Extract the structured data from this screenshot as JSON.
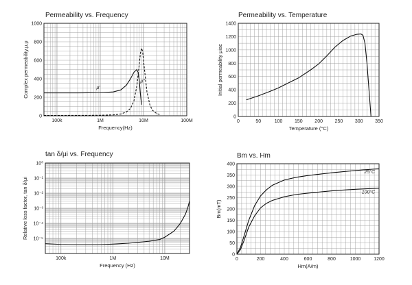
{
  "chart_data": [
    {
      "id": "pf",
      "type": "line",
      "title": "Permeability vs. Frequency",
      "xlabel": "Frequency(Hz)",
      "ylabel": "Complex permeability,μ,μ",
      "x_scale": "log",
      "xlim": [
        50000,
        100000000
      ],
      "ylim": [
        0,
        1000
      ],
      "x_ticks": [
        {
          "v": 100000,
          "label": "100k"
        },
        {
          "v": 1000000,
          "label": "1M"
        },
        {
          "v": 10000000,
          "label": "10M"
        },
        {
          "v": 100000000,
          "label": "100M"
        }
      ],
      "y_ticks": [
        0,
        200,
        400,
        600,
        800,
        1000
      ],
      "grid": "both",
      "series": [
        {
          "name": "μ'",
          "style": "solid",
          "x": [
            50000,
            100000,
            300000,
            1000000,
            2000000,
            3000000,
            4000000,
            5000000,
            6000000,
            7000000,
            7500000,
            8000000,
            8500000,
            9000000
          ],
          "y": [
            248,
            248,
            248,
            250,
            258,
            280,
            330,
            400,
            470,
            500,
            470,
            380,
            230,
            120
          ]
        },
        {
          "name": "μ''",
          "style": "dashed",
          "x": [
            50000,
            1000000,
            2000000,
            3000000,
            4000000,
            5000000,
            6000000,
            7000000,
            8000000,
            8500000,
            9000000,
            9500000,
            10000000,
            11000000,
            12000000,
            14000000,
            16000000,
            20000000,
            25000000
          ],
          "y": [
            3,
            5,
            10,
            20,
            40,
            80,
            160,
            320,
            560,
            680,
            730,
            700,
            600,
            420,
            260,
            120,
            60,
            25,
            10
          ]
        }
      ],
      "annotations": [
        {
          "text": "μ'",
          "x": 900000,
          "y": 290
        },
        {
          "text": "μ''",
          "x": 9500000,
          "y": 360
        }
      ]
    },
    {
      "id": "pt",
      "type": "line",
      "title": "Permeability vs. Temperature",
      "xlabel": "Temperature (°C)",
      "ylabel": "Initial permeability μiac",
      "x_scale": "linear",
      "xlim": [
        0,
        350
      ],
      "ylim": [
        0,
        1400
      ],
      "x_ticks": [
        {
          "v": 0,
          "label": "0"
        },
        {
          "v": 50,
          "label": "50"
        },
        {
          "v": 100,
          "label": "100"
        },
        {
          "v": 150,
          "label": "150"
        },
        {
          "v": 200,
          "label": "200"
        },
        {
          "v": 250,
          "label": "250"
        },
        {
          "v": 300,
          "label": "300"
        },
        {
          "v": 350,
          "label": "350"
        }
      ],
      "y_ticks": [
        0,
        200,
        400,
        600,
        800,
        1000,
        1200,
        1400
      ],
      "grid": "both",
      "series": [
        {
          "name": "",
          "style": "solid",
          "x": [
            20,
            50,
            80,
            100,
            120,
            150,
            180,
            200,
            220,
            240,
            260,
            280,
            295,
            305,
            310,
            315,
            320,
            325,
            330
          ],
          "y": [
            250,
            310,
            380,
            430,
            490,
            580,
            700,
            790,
            910,
            1040,
            1140,
            1210,
            1235,
            1240,
            1220,
            1100,
            800,
            400,
            0
          ]
        }
      ]
    },
    {
      "id": "tf",
      "type": "line",
      "title": "tan δ/μi vs. Frequency",
      "xlabel": "Frequency (Hz)",
      "ylabel": "Relative loss factor, tan δ/μi",
      "x_scale": "log",
      "y_scale": "log",
      "xlim": [
        50000,
        30000000
      ],
      "ylim": [
        1e-06,
        1
      ],
      "x_ticks": [
        {
          "v": 100000,
          "label": "100k"
        },
        {
          "v": 1000000,
          "label": "1M"
        },
        {
          "v": 10000000,
          "label": "10M"
        }
      ],
      "y_ticks": [
        {
          "v": 1,
          "label": "10⁰"
        },
        {
          "v": 0.1,
          "label": "10⁻¹"
        },
        {
          "v": 0.01,
          "label": "10⁻²"
        },
        {
          "v": 0.001,
          "label": "10⁻³"
        },
        {
          "v": 0.0001,
          "label": "10⁻⁴"
        },
        {
          "v": 1e-05,
          "label": "10⁻⁵"
        }
      ],
      "grid": "both",
      "series": [
        {
          "name": "",
          "style": "solid",
          "x": [
            50000,
            100000,
            200000,
            500000,
            1000000,
            2000000,
            5000000,
            8000000,
            10000000,
            15000000,
            20000000,
            25000000,
            28000000,
            30000000
          ],
          "y": [
            4.5e-06,
            4e-06,
            3.8e-06,
            3.8e-06,
            4.2e-06,
            4.8e-06,
            6.5e-06,
            8.5e-06,
            1.2e-05,
            3e-05,
            0.0001,
            0.0004,
            0.0012,
            0.003
          ]
        }
      ]
    },
    {
      "id": "bh",
      "type": "line",
      "title": "Bm vs. Hm",
      "xlabel": "Hm(A/m)",
      "ylabel": "Bm(mT)",
      "x_scale": "linear",
      "xlim": [
        0,
        1200
      ],
      "ylim": [
        0,
        400
      ],
      "x_ticks": [
        {
          "v": 0,
          "label": "0"
        },
        {
          "v": 200,
          "label": "200"
        },
        {
          "v": 400,
          "label": "400"
        },
        {
          "v": 600,
          "label": "600"
        },
        {
          "v": 800,
          "label": "800"
        },
        {
          "v": 1000,
          "label": "1000"
        },
        {
          "v": 1200,
          "label": "1200"
        }
      ],
      "y_ticks": [
        0,
        50,
        100,
        150,
        200,
        250,
        300,
        350,
        400
      ],
      "grid": "both",
      "series": [
        {
          "name": "25°C",
          "style": "solid",
          "x": [
            0,
            30,
            60,
            100,
            150,
            200,
            250,
            300,
            400,
            500,
            600,
            800,
            1000,
            1200
          ],
          "y": [
            0,
            30,
            80,
            150,
            215,
            258,
            285,
            305,
            328,
            340,
            348,
            360,
            370,
            378
          ]
        },
        {
          "name": "100°C",
          "style": "solid",
          "x": [
            0,
            30,
            60,
            100,
            150,
            200,
            250,
            300,
            400,
            500,
            600,
            800,
            1000,
            1200
          ],
          "y": [
            0,
            20,
            60,
            120,
            170,
            205,
            225,
            238,
            254,
            264,
            270,
            280,
            287,
            292
          ]
        }
      ],
      "annotations": [
        {
          "text": "25°C",
          "x": 1120,
          "y": 358
        },
        {
          "text": "100°C",
          "x": 1110,
          "y": 268
        }
      ]
    }
  ]
}
